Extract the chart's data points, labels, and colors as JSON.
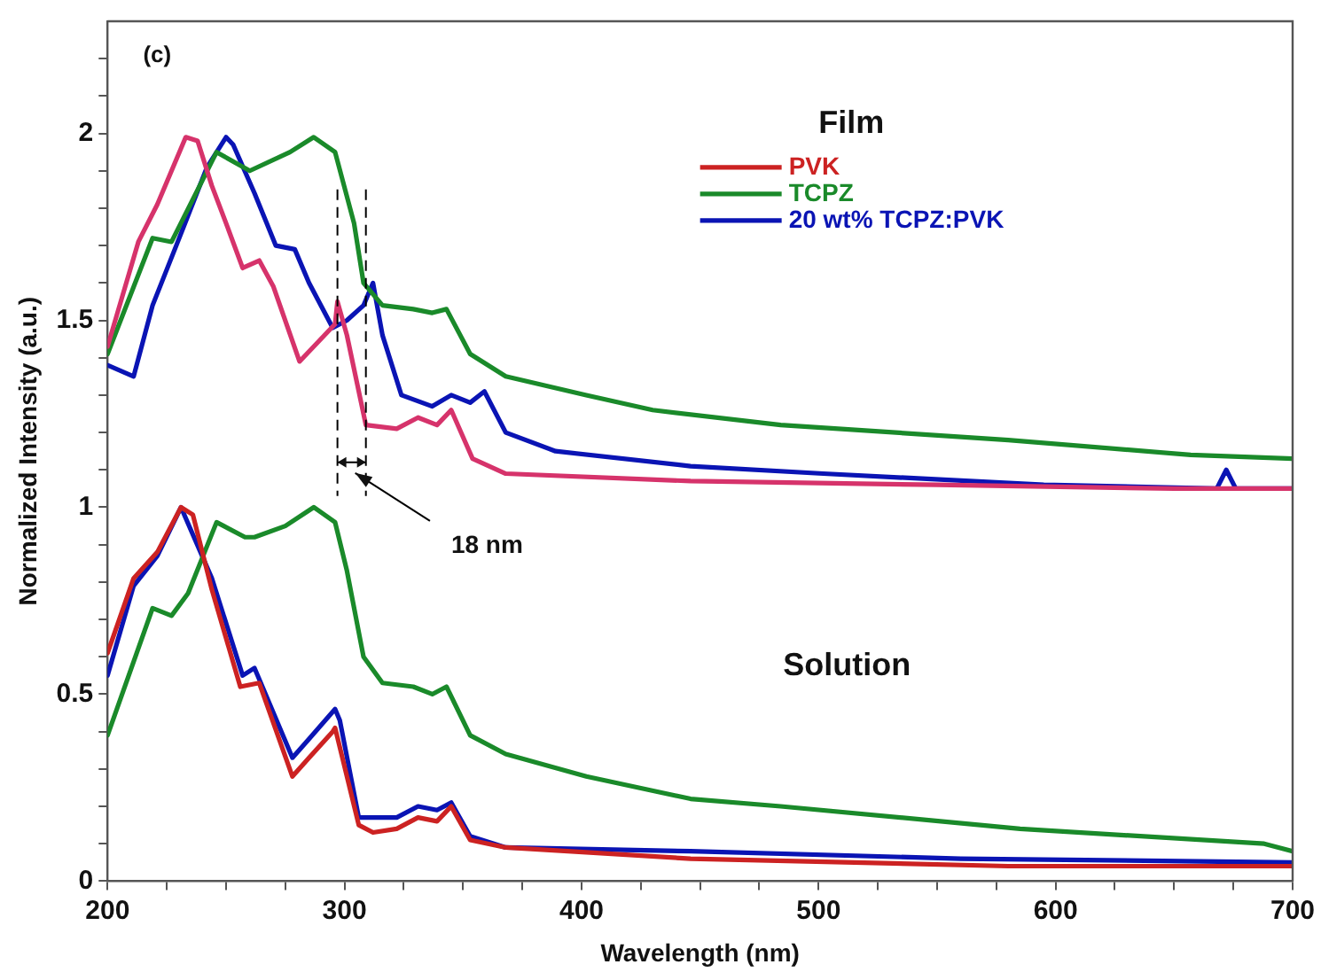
{
  "chart_data": {
    "type": "line",
    "xlabel": "Wavelength (nm)",
    "ylabel": "Normalized Intensity (a.u.)",
    "xlim": [
      200,
      700
    ],
    "xticks": [
      200,
      {
        "value": 225,
        "label": null
      },
      {
        "value": 250,
        "label": null
      },
      {
        "value": 275,
        "label": null
      },
      300,
      {
        "value": 325,
        "label": null
      },
      {
        "value": 350,
        "label": null
      },
      {
        "value": 375,
        "label": null
      },
      400,
      {
        "value": 425,
        "label": null
      },
      {
        "value": 450,
        "label": null
      },
      {
        "value": 475,
        "label": null
      },
      500,
      {
        "value": 525,
        "label": null
      },
      {
        "value": 550,
        "label": null
      },
      {
        "value": 575,
        "label": null
      },
      600,
      {
        "value": 625,
        "label": null
      },
      {
        "value": 650,
        "label": null
      },
      {
        "value": 675,
        "label": null
      },
      700
    ],
    "ylim": [
      0,
      2.3
    ],
    "yticks": [
      0,
      {
        "value": 0.1,
        "label": null
      },
      {
        "value": 0.2,
        "label": null
      },
      {
        "value": 0.3,
        "label": null
      },
      {
        "value": 0.4,
        "label": null
      },
      0.5,
      {
        "value": 0.6,
        "label": null
      },
      {
        "value": 0.7,
        "label": null
      },
      {
        "value": 0.8,
        "label": null
      },
      {
        "value": 0.9,
        "label": null
      },
      1,
      {
        "value": 1.1,
        "label": null
      },
      {
        "value": 1.2,
        "label": null
      },
      {
        "value": 1.3,
        "label": null
      },
      {
        "value": 1.4,
        "label": null
      },
      1.5,
      {
        "value": 1.6,
        "label": null
      },
      {
        "value": 1.7,
        "label": null
      },
      {
        "value": 1.8,
        "label": null
      },
      {
        "value": 1.9,
        "label": null
      },
      2,
      {
        "value": 2.1,
        "label": null
      },
      {
        "value": 2.2,
        "label": null
      }
    ],
    "grid": false,
    "legend": "top right",
    "marker": "none",
    "line_style": "solid",
    "series": [
      {
        "color": "#d6336b",
        "x": [
          200,
          213,
          221,
          233,
          238,
          244,
          250,
          257,
          264,
          270,
          281,
          296,
          297,
          301,
          309,
          322,
          331,
          339,
          345,
          354,
          368,
          446,
          550,
          650,
          700
        ],
        "values": [
          1.43,
          1.71,
          1.81,
          1.99,
          1.98,
          1.86,
          1.76,
          1.64,
          1.66,
          1.59,
          1.39,
          1.49,
          1.55,
          1.46,
          1.22,
          1.21,
          1.24,
          1.22,
          1.26,
          1.13,
          1.09,
          1.07,
          1.06,
          1.05,
          1.05
        ]
      },
      {
        "color": "#1a8a2a",
        "x": [
          200,
          219,
          227,
          246,
          260,
          277,
          287,
          296,
          304,
          308,
          316,
          329,
          337,
          343,
          353,
          368,
          402,
          430,
          484,
          580,
          657,
          700
        ],
        "values": [
          1.41,
          1.72,
          1.71,
          1.95,
          1.9,
          1.95,
          1.99,
          1.95,
          1.76,
          1.6,
          1.54,
          1.53,
          1.52,
          1.53,
          1.41,
          1.35,
          1.3,
          1.26,
          1.22,
          1.18,
          1.14,
          1.13
        ]
      },
      {
        "color": "#0a14b4",
        "x": [
          200,
          211,
          219,
          229,
          242,
          250,
          253,
          262,
          271,
          279,
          285,
          295,
          301,
          308,
          312,
          316,
          324,
          337,
          345,
          353,
          359,
          368,
          389,
          446,
          502,
          595,
          668,
          672,
          676,
          700
        ],
        "values": [
          1.38,
          1.35,
          1.54,
          1.7,
          1.91,
          1.99,
          1.97,
          1.84,
          1.7,
          1.69,
          1.6,
          1.48,
          1.5,
          1.54,
          1.6,
          1.46,
          1.3,
          1.27,
          1.3,
          1.28,
          1.31,
          1.2,
          1.15,
          1.11,
          1.09,
          1.06,
          1.05,
          1.1,
          1.05,
          1.05
        ]
      },
      {
        "name": "PVK",
        "color": "#cc2222",
        "x": [
          200,
          211,
          221,
          231,
          236,
          244,
          256,
          264,
          278,
          285,
          295,
          296,
          306,
          312,
          322,
          331,
          339,
          345,
          353,
          368,
          446,
          580,
          700
        ],
        "values": [
          0.61,
          0.81,
          0.88,
          1,
          0.98,
          0.78,
          0.52,
          0.53,
          0.28,
          0.33,
          0.4,
          0.41,
          0.15,
          0.13,
          0.14,
          0.17,
          0.16,
          0.2,
          0.11,
          0.09,
          0.06,
          0.04,
          0.04
        ]
      },
      {
        "name": "TCPZ",
        "color": "#1a8a2a",
        "x": [
          200,
          219,
          227,
          234,
          246,
          258,
          262,
          275,
          287,
          296,
          301,
          308,
          316,
          329,
          337,
          343,
          353,
          368,
          402,
          446,
          484,
          585,
          688,
          700
        ],
        "values": [
          0.39,
          0.73,
          0.71,
          0.77,
          0.96,
          0.92,
          0.92,
          0.95,
          1,
          0.96,
          0.83,
          0.6,
          0.53,
          0.52,
          0.5,
          0.52,
          0.39,
          0.34,
          0.28,
          0.22,
          0.2,
          0.14,
          0.1,
          0.08
        ]
      },
      {
        "name": "20 wt% TCPZ:PVK",
        "color": "#0a14b4",
        "x": [
          200,
          211,
          221,
          231,
          244,
          257,
          262,
          278,
          285,
          296,
          298,
          306,
          322,
          331,
          339,
          345,
          353,
          368,
          446,
          560,
          700
        ],
        "values": [
          0.55,
          0.79,
          0.87,
          1,
          0.81,
          0.55,
          0.57,
          0.33,
          0.38,
          0.46,
          0.43,
          0.17,
          0.17,
          0.2,
          0.19,
          0.21,
          0.12,
          0.09,
          0.08,
          0.06,
          0.05
        ]
      }
    ],
    "ref_lines": [
      {
        "axis": "x",
        "value": 297,
        "line_style": "dashed",
        "color": "#000000"
      },
      {
        "axis": "x",
        "value": 309,
        "line_style": "dashed",
        "color": "#000000"
      }
    ],
    "annotations": [
      "(c)",
      "Film",
      "Solution",
      "18 nm"
    ]
  }
}
